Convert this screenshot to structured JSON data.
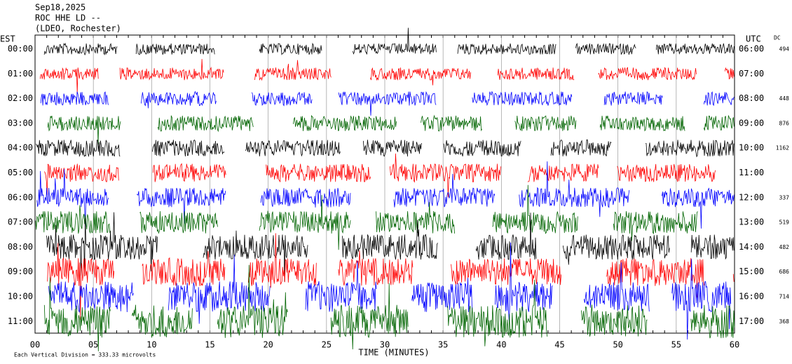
{
  "chart_data": {
    "type": "helicorder",
    "title_lines": [
      "Sep18,2025",
      "ROC HHE LD --",
      "(LDEO, Rochester)"
    ],
    "left_axis_title": "EST",
    "right_axis_title": "UTC",
    "dc_title": "DC",
    "categories": [
      "00:00",
      "01:00",
      "02:00",
      "03:00",
      "04:00",
      "05:00",
      "06:00",
      "07:00",
      "08:00",
      "09:00",
      "10:00",
      "11:00"
    ],
    "right_labels": [
      "06:00",
      "07:00",
      "08:00",
      "09:00",
      "10:00",
      "11:00",
      "12:00",
      "13:00",
      "14:00",
      "15:00",
      "16:00",
      "17:00"
    ],
    "dc_values": [
      494,
      null,
      448,
      876,
      1162,
      null,
      337,
      519,
      482,
      686,
      714,
      368
    ],
    "x_labels": [
      "00",
      "05",
      "10",
      "15",
      "20",
      "25",
      "30",
      "35",
      "40",
      "45",
      "50",
      "55",
      "60"
    ],
    "x_axis_title": "TIME (MINUTES)",
    "footer": "Each Vertical Division =  333.33 microvolts",
    "trace_colors": [
      "#000000",
      "#ff0000",
      "#0000ff",
      "#006400"
    ]
  }
}
